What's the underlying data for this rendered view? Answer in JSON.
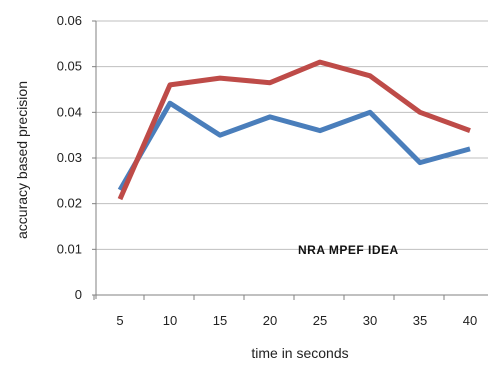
{
  "chart_data": {
    "type": "line",
    "title": "",
    "xlabel": "time in seconds",
    "ylabel": "accuracy based precision",
    "categories": [
      "5",
      "10",
      "15",
      "20",
      "25",
      "30",
      "35",
      "40"
    ],
    "y_tick_labels": [
      "0",
      "0.01",
      "0.02",
      "0.03",
      "0.04",
      "0.05",
      "0.06"
    ],
    "ylim": [
      0,
      0.06
    ],
    "grid": true,
    "legend": "none",
    "series": [
      {
        "color": "#4a7ebb",
        "values": [
          0.023,
          0.042,
          0.035,
          0.039,
          0.036,
          0.04,
          0.029,
          0.032
        ]
      },
      {
        "color": "#be4b48",
        "values": [
          0.021,
          0.046,
          0.0475,
          0.0465,
          0.051,
          0.048,
          0.04,
          0.036
        ]
      }
    ],
    "annotation": "NRA MPEF IDEA"
  }
}
